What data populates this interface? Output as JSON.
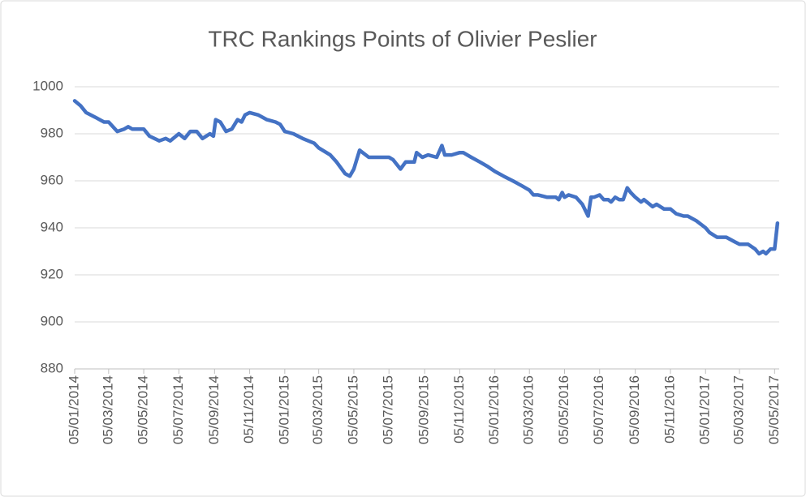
{
  "chart_data": {
    "type": "line",
    "title": "TRC Rankings Points of Olivier Peslier",
    "x": [
      "05/01/2014",
      "15/01/2014",
      "25/01/2014",
      "10/02/2014",
      "25/02/2014",
      "05/03/2014",
      "20/03/2014",
      "01/04/2014",
      "08/04/2014",
      "15/04/2014",
      "05/05/2014",
      "15/05/2014",
      "01/06/2014",
      "12/06/2014",
      "20/06/2014",
      "05/07/2014",
      "15/07/2014",
      "25/07/2014",
      "05/08/2014",
      "15/08/2014",
      "28/08/2014",
      "03/09/2014",
      "07/09/2014",
      "15/09/2014",
      "25/09/2014",
      "05/10/2014",
      "15/10/2014",
      "22/10/2014",
      "28/10/2014",
      "05/11/2014",
      "20/11/2014",
      "05/12/2014",
      "20/12/2014",
      "28/12/2014",
      "05/01/2015",
      "20/01/2015",
      "05/02/2015",
      "25/02/2015",
      "05/03/2015",
      "25/03/2015",
      "05/04/2015",
      "20/04/2015",
      "28/04/2015",
      "05/05/2015",
      "10/05/2015",
      "15/05/2015",
      "31/05/2015",
      "20/06/2015",
      "05/07/2015",
      "12/07/2015",
      "25/07/2015",
      "03/08/2015",
      "18/08/2015",
      "22/08/2015",
      "01/09/2015",
      "11/09/2015",
      "26/09/2015",
      "05/10/2015",
      "10/10/2015",
      "22/10/2015",
      "05/11/2015",
      "11/11/2015",
      "25/11/2015",
      "10/12/2015",
      "24/12/2015",
      "05/01/2016",
      "20/01/2016",
      "05/02/2016",
      "20/02/2016",
      "05/03/2016",
      "12/03/2016",
      "20/03/2016",
      "05/04/2016",
      "20/04/2016",
      "25/04/2016",
      "01/05/2016",
      "05/05/2016",
      "12/05/2016",
      "25/05/2016",
      "05/06/2016",
      "15/06/2016",
      "20/06/2016",
      "25/06/2016",
      "05/07/2016",
      "12/07/2016",
      "20/07/2016",
      "25/07/2016",
      "01/08/2016",
      "08/08/2016",
      "15/08/2016",
      "22/08/2016",
      "28/08/2016",
      "05/09/2016",
      "15/09/2016",
      "20/09/2016",
      "05/10/2016",
      "12/10/2016",
      "25/10/2016",
      "05/11/2016",
      "15/11/2016",
      "28/11/2016",
      "05/12/2016",
      "20/12/2016",
      "05/01/2017",
      "12/01/2017",
      "25/01/2017",
      "10/02/2017",
      "25/02/2017",
      "05/03/2017",
      "20/03/2017",
      "01/04/2017",
      "08/04/2017",
      "15/04/2017",
      "20/04/2017",
      "28/04/2017",
      "05/05/2017",
      "10/05/2017"
    ],
    "values": [
      994,
      992,
      989,
      987,
      985,
      985,
      981,
      982,
      983,
      982,
      982,
      979,
      977,
      978,
      977,
      980,
      978,
      981,
      981,
      978,
      980,
      979,
      986,
      985,
      981,
      982,
      986,
      985,
      988,
      989,
      988,
      986,
      985,
      984,
      981,
      980,
      978,
      976,
      974,
      971,
      968,
      963,
      962,
      965,
      969,
      973,
      970,
      970,
      970,
      969,
      965,
      968,
      968,
      972,
      970,
      971,
      970,
      975,
      971,
      971,
      972,
      972,
      970,
      968,
      966,
      964,
      962,
      960,
      958,
      956,
      954,
      954,
      953,
      953,
      952,
      955,
      953,
      954,
      953,
      950,
      945,
      953,
      953,
      954,
      952,
      952,
      951,
      953,
      952,
      952,
      957,
      955,
      953,
      951,
      952,
      949,
      950,
      948,
      948,
      946,
      945,
      945,
      943,
      940,
      938,
      936,
      936,
      934,
      933,
      933,
      931,
      929,
      930,
      929,
      931,
      931,
      942
    ],
    "color": "#4472c4",
    "xlim": [
      "05/01/2014",
      "13/05/2017"
    ],
    "xticks": [
      "05/01/2014",
      "05/03/2014",
      "05/05/2014",
      "05/07/2014",
      "05/09/2014",
      "05/11/2014",
      "05/01/2015",
      "05/03/2015",
      "05/05/2015",
      "05/07/2015",
      "05/09/2015",
      "05/11/2015",
      "05/01/2016",
      "05/03/2016",
      "05/05/2016",
      "05/07/2016",
      "05/09/2016",
      "05/11/2016",
      "05/01/2017",
      "05/03/2017",
      "05/05/2017"
    ],
    "ylim": [
      880,
      1000
    ],
    "yticks": [
      880,
      900,
      920,
      940,
      960,
      980,
      1000
    ],
    "grid": true
  }
}
